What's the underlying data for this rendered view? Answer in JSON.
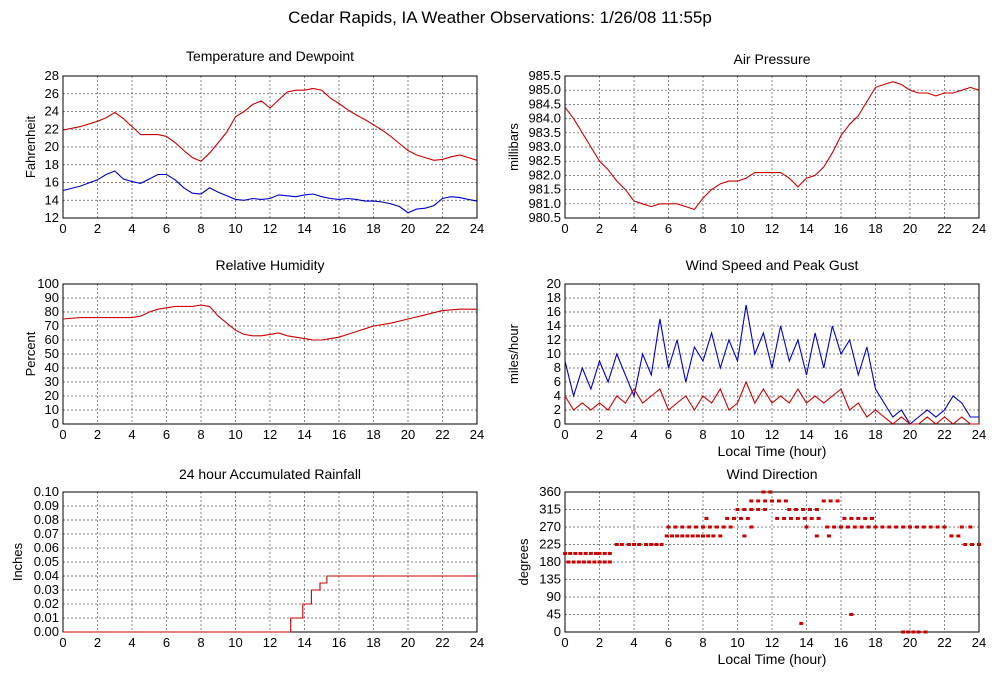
{
  "page": {
    "title": "Cedar Rapids, IA Weather Observations: 1/26/08 11:55p"
  },
  "colors": {
    "series1": "#cc0000",
    "series2": "#0000cc",
    "grid": "#555555",
    "frame": "#000000"
  },
  "chart_data": [
    {
      "id": "temp",
      "type": "line",
      "title": "Temperature and Dewpoint",
      "ylabel": "Fahrenheit",
      "xlabel": "",
      "xlim": [
        0,
        24
      ],
      "ylim": [
        12,
        28
      ],
      "x_ticks": [
        0,
        2,
        4,
        6,
        8,
        10,
        12,
        14,
        16,
        18,
        20,
        22,
        24
      ],
      "y_ticks": [
        12,
        14,
        16,
        18,
        20,
        22,
        24,
        26,
        28
      ],
      "grid": true,
      "series": [
        {
          "color": "#cc0000",
          "x": [
            0,
            1,
            2,
            2.5,
            3,
            3.5,
            4,
            4.5,
            5,
            5.5,
            6,
            6.5,
            7,
            7.5,
            8,
            8.5,
            9,
            9.5,
            10,
            10.5,
            11,
            11.5,
            12,
            12.5,
            13,
            13.5,
            14,
            14.5,
            15,
            15.5,
            16,
            16.5,
            17,
            17.5,
            18,
            18.5,
            19,
            19.5,
            20,
            20.5,
            21,
            21.5,
            22,
            22.5,
            23,
            23.5,
            24
          ],
          "y": [
            21.9,
            22.3,
            22.9,
            23.3,
            23.9,
            23.2,
            22.3,
            21.4,
            21.4,
            21.4,
            21.2,
            20.5,
            19.6,
            18.8,
            18.4,
            19.3,
            20.5,
            21.7,
            23.4,
            24.0,
            24.8,
            25.2,
            24.4,
            25.3,
            26.2,
            26.4,
            26.4,
            26.6,
            26.4,
            25.5,
            24.9,
            24.2,
            23.6,
            23.1,
            22.5,
            21.9,
            21.2,
            20.4,
            19.6,
            19.1,
            18.8,
            18.5,
            18.6,
            18.9,
            19.1,
            18.8,
            18.5
          ]
        },
        {
          "color": "#0000cc",
          "x": [
            0,
            1,
            2,
            2.5,
            3,
            3.5,
            4,
            4.5,
            5,
            5.5,
            6,
            6.5,
            7,
            7.5,
            8,
            8.5,
            9,
            9.5,
            10,
            10.5,
            11,
            11.5,
            12,
            12.5,
            13,
            13.5,
            14,
            14.5,
            15,
            15.5,
            16,
            16.5,
            17,
            17.5,
            18,
            18.5,
            19,
            19.5,
            20,
            20.5,
            21,
            21.5,
            22,
            22.5,
            23,
            23.5,
            24
          ],
          "y": [
            15.1,
            15.6,
            16.3,
            16.9,
            17.3,
            16.4,
            16.1,
            15.9,
            16.4,
            16.9,
            16.9,
            16.3,
            15.4,
            14.8,
            14.7,
            15.4,
            14.9,
            14.5,
            14.1,
            14.0,
            14.2,
            14.1,
            14.2,
            14.6,
            14.5,
            14.4,
            14.6,
            14.7,
            14.4,
            14.2,
            14.1,
            14.2,
            14.1,
            13.9,
            13.9,
            13.8,
            13.6,
            13.3,
            12.6,
            13.0,
            13.1,
            13.4,
            14.2,
            14.4,
            14.3,
            14.1,
            13.9
          ]
        }
      ]
    },
    {
      "id": "pressure",
      "type": "line",
      "title": "Air Pressure",
      "ylabel": "millibars",
      "xlabel": "",
      "xlim": [
        0,
        24
      ],
      "ylim": [
        980.5,
        985.5
      ],
      "x_ticks": [
        0,
        2,
        4,
        6,
        8,
        10,
        12,
        14,
        16,
        18,
        20,
        22,
        24
      ],
      "y_ticks": [
        "980.5",
        "981.0",
        "981.5",
        "982.0",
        "982.5",
        "983.0",
        "983.5",
        "984.0",
        "984.5",
        "985.0",
        "985.5"
      ],
      "grid": true,
      "series": [
        {
          "color": "#cc0000",
          "x": [
            0,
            0.5,
            1,
            1.5,
            2,
            2.5,
            3,
            3.5,
            4,
            4.5,
            5,
            5.5,
            6,
            6.5,
            7,
            7.5,
            8,
            8.5,
            9,
            9.5,
            10,
            10.5,
            11,
            11.5,
            12,
            12.5,
            13,
            13.5,
            14,
            14.5,
            15,
            15.5,
            16,
            16.5,
            17,
            17.5,
            18,
            18.5,
            19,
            19.5,
            20,
            20.5,
            21,
            21.5,
            22,
            22.5,
            23,
            23.5,
            24
          ],
          "y": [
            984.4,
            984.0,
            983.5,
            983.0,
            982.5,
            982.2,
            981.8,
            981.5,
            981.1,
            981.0,
            980.9,
            981.0,
            981.0,
            981.0,
            980.9,
            980.8,
            981.2,
            981.5,
            981.7,
            981.8,
            981.8,
            981.9,
            982.1,
            982.1,
            982.1,
            982.1,
            981.9,
            981.6,
            981.9,
            982.0,
            982.3,
            982.8,
            983.4,
            983.8,
            984.1,
            984.6,
            985.1,
            985.2,
            985.3,
            985.2,
            985.0,
            984.9,
            984.9,
            984.8,
            984.9,
            984.9,
            985.0,
            985.1,
            985.0
          ]
        }
      ]
    },
    {
      "id": "humidity",
      "type": "line",
      "title": "Relative Humidity",
      "ylabel": "Percent",
      "xlabel": "",
      "xlim": [
        0,
        24
      ],
      "ylim": [
        0,
        100
      ],
      "x_ticks": [
        0,
        2,
        4,
        6,
        8,
        10,
        12,
        14,
        16,
        18,
        20,
        22,
        24
      ],
      "y_ticks": [
        0,
        10,
        20,
        30,
        40,
        50,
        60,
        70,
        80,
        90,
        100
      ],
      "grid": true,
      "series": [
        {
          "color": "#cc0000",
          "x": [
            0,
            1,
            2,
            3,
            4,
            4.5,
            5,
            5.5,
            6,
            6.5,
            7,
            7.5,
            8,
            8.5,
            9,
            9.5,
            10,
            10.5,
            11,
            11.5,
            12,
            12.5,
            13,
            13.5,
            14,
            14.5,
            15,
            15.5,
            16,
            16.5,
            17,
            17.5,
            18,
            19,
            20,
            21,
            22,
            23,
            24
          ],
          "y": [
            75,
            76,
            76,
            76,
            76,
            77,
            80,
            82,
            83,
            84,
            84,
            84,
            85,
            84,
            77,
            72,
            67,
            64,
            63,
            63,
            64,
            65,
            63,
            62,
            61,
            60,
            60,
            61,
            62,
            64,
            66,
            68,
            70,
            72,
            75,
            78,
            81,
            82,
            82
          ]
        }
      ]
    },
    {
      "id": "wind",
      "type": "line",
      "title": "Wind Speed and Peak Gust",
      "ylabel": "miles/hour",
      "xlabel": "Local Time (hour)",
      "xlim": [
        0,
        24
      ],
      "ylim": [
        0,
        20
      ],
      "x_ticks": [
        0,
        2,
        4,
        6,
        8,
        10,
        12,
        14,
        16,
        18,
        20,
        22,
        24
      ],
      "y_ticks": [
        0,
        2,
        4,
        6,
        8,
        10,
        12,
        14,
        16,
        18,
        20
      ],
      "grid": true,
      "series": [
        {
          "color": "#0000cc",
          "x": [
            0,
            0.5,
            1,
            1.5,
            2,
            2.5,
            3,
            3.5,
            4,
            4.5,
            5,
            5.5,
            6,
            6.5,
            7,
            7.5,
            8,
            8.5,
            9,
            9.5,
            10,
            10.5,
            11,
            11.5,
            12,
            12.5,
            13,
            13.5,
            14,
            14.5,
            15,
            15.5,
            16,
            16.5,
            17,
            17.5,
            18,
            18.5,
            19,
            19.5,
            20,
            20.5,
            21,
            21.5,
            22,
            22.5,
            23,
            23.5,
            24
          ],
          "y": [
            9,
            4,
            8,
            5,
            9,
            6,
            10,
            7,
            4,
            10,
            7,
            15,
            8,
            12,
            6,
            11,
            9,
            13,
            8,
            12,
            9,
            17,
            10,
            13,
            8,
            14,
            9,
            12,
            7,
            13,
            8,
            14,
            10,
            12,
            7,
            11,
            5,
            3,
            1,
            2,
            0,
            1,
            2,
            1,
            2,
            4,
            3,
            1,
            1
          ]
        },
        {
          "color": "#cc0000",
          "x": [
            0,
            0.5,
            1,
            1.5,
            2,
            2.5,
            3,
            3.5,
            4,
            4.5,
            5,
            5.5,
            6,
            6.5,
            7,
            7.5,
            8,
            8.5,
            9,
            9.5,
            10,
            10.5,
            11,
            11.5,
            12,
            12.5,
            13,
            13.5,
            14,
            14.5,
            15,
            15.5,
            16,
            16.5,
            17,
            17.5,
            18,
            18.5,
            19,
            19.5,
            20,
            20.5,
            21,
            21.5,
            22,
            22.5,
            23,
            23.5,
            24
          ],
          "y": [
            4,
            2,
            3,
            2,
            3,
            2,
            4,
            3,
            5,
            3,
            4,
            5,
            2,
            3,
            4,
            2,
            4,
            3,
            5,
            2,
            3,
            6,
            3,
            5,
            3,
            4,
            3,
            5,
            3,
            4,
            3,
            4,
            5,
            2,
            3,
            1,
            2,
            1,
            0,
            1,
            0,
            0,
            1,
            0,
            1,
            0,
            1,
            0,
            0
          ]
        }
      ]
    },
    {
      "id": "rain",
      "type": "line",
      "title": "24 hour Accumulated Rainfall",
      "ylabel": "Inches",
      "xlabel": "",
      "xlim": [
        0,
        24
      ],
      "ylim": [
        0,
        0.1
      ],
      "x_ticks": [
        0,
        2,
        4,
        6,
        8,
        10,
        12,
        14,
        16,
        18,
        20,
        22,
        24
      ],
      "y_ticks": [
        "0.00",
        "0.01",
        "0.02",
        "0.03",
        "0.04",
        "0.05",
        "0.06",
        "0.07",
        "0.08",
        "0.09",
        "0.10"
      ],
      "grid": true,
      "series": [
        {
          "color": "#cc0000",
          "step": true,
          "x": [
            0,
            13.2,
            13.2,
            13.9,
            13.9,
            14.4,
            14.4,
            14.9,
            14.9,
            15.3,
            15.3,
            24
          ],
          "y": [
            0,
            0,
            0.01,
            0.01,
            0.02,
            0.02,
            0.03,
            0.03,
            0.035,
            0.035,
            0.04,
            0.04
          ]
        }
      ]
    },
    {
      "id": "direction",
      "type": "scatter",
      "title": "Wind Direction",
      "ylabel": "degrees",
      "xlabel": "Local Time (hour)",
      "xlim": [
        0,
        24
      ],
      "ylim": [
        0,
        360
      ],
      "x_ticks": [
        0,
        2,
        4,
        6,
        8,
        10,
        12,
        14,
        16,
        18,
        20,
        22,
        24
      ],
      "y_ticks": [
        0,
        45,
        90,
        135,
        180,
        225,
        270,
        315,
        360
      ],
      "grid": true,
      "series": [
        {
          "color": "#cc0000",
          "x": [
            0,
            0.3,
            0.6,
            0.9,
            1.2,
            1.5,
            1.8,
            0.2,
            0.5,
            0.8,
            1.1,
            1.4,
            1.7,
            2.0,
            2.3,
            2.6,
            2.0,
            2.3,
            2.6,
            3.0,
            3.3,
            3.7,
            4.0,
            4.3,
            4.7,
            5.0,
            5.3,
            5.6,
            5.9,
            6.2,
            6.5,
            6.8,
            7.1,
            7.4,
            7.7,
            8.0,
            8.3,
            8.6,
            9.0,
            6.0,
            6.4,
            6.8,
            7.2,
            7.6,
            8.0,
            8.4,
            8.8,
            9.2,
            9.6,
            9.4,
            9.8,
            10.2,
            10.6,
            10.0,
            10.4,
            10.8,
            11.2,
            11.6,
            10.8,
            11.2,
            11.6,
            12.0,
            12.4,
            12.8,
            11.5,
            11.9,
            12.3,
            12.7,
            13.1,
            13.5,
            13.9,
            14.3,
            14.7,
            13.0,
            13.4,
            13.8,
            14.2,
            14.6,
            15.0,
            15.4,
            15.8,
            16.2,
            16.6,
            17.0,
            17.4,
            17.8,
            15.2,
            15.6,
            16.0,
            16.4,
            16.8,
            17.2,
            17.6,
            18.0,
            18.4,
            18.8,
            19.2,
            19.6,
            20.0,
            20.4,
            20.8,
            21.2,
            21.6,
            22.0,
            22.4,
            22.8,
            23.2,
            23.6,
            24.0,
            23.0,
            23.5,
            13.7,
            16.6,
            19.6,
            19.9,
            20.2,
            20.5,
            20.9,
            10.4,
            10.8,
            14.6,
            15.3,
            14.0,
            9.8,
            8.8,
            8.2
          ],
          "y": [
            202,
            202,
            202,
            202,
            202,
            202,
            202,
            180,
            180,
            180,
            180,
            180,
            180,
            180,
            180,
            180,
            202,
            202,
            202,
            225,
            225,
            225,
            225,
            225,
            225,
            225,
            225,
            225,
            247,
            247,
            247,
            247,
            247,
            247,
            247,
            247,
            247,
            247,
            247,
            270,
            270,
            270,
            270,
            270,
            270,
            270,
            270,
            270,
            270,
            292,
            292,
            292,
            292,
            315,
            315,
            315,
            315,
            315,
            337,
            337,
            337,
            337,
            337,
            337,
            360,
            360,
            292,
            292,
            292,
            292,
            292,
            292,
            292,
            315,
            315,
            315,
            315,
            315,
            337,
            337,
            337,
            292,
            292,
            292,
            292,
            292,
            270,
            270,
            270,
            270,
            270,
            270,
            270,
            270,
            270,
            270,
            270,
            270,
            270,
            270,
            270,
            270,
            270,
            270,
            247,
            247,
            225,
            225,
            225,
            270,
            270,
            22,
            45,
            0,
            0,
            0,
            0,
            0,
            247,
            270,
            247,
            247,
            270,
            292,
            270,
            292
          ]
        }
      ]
    }
  ]
}
